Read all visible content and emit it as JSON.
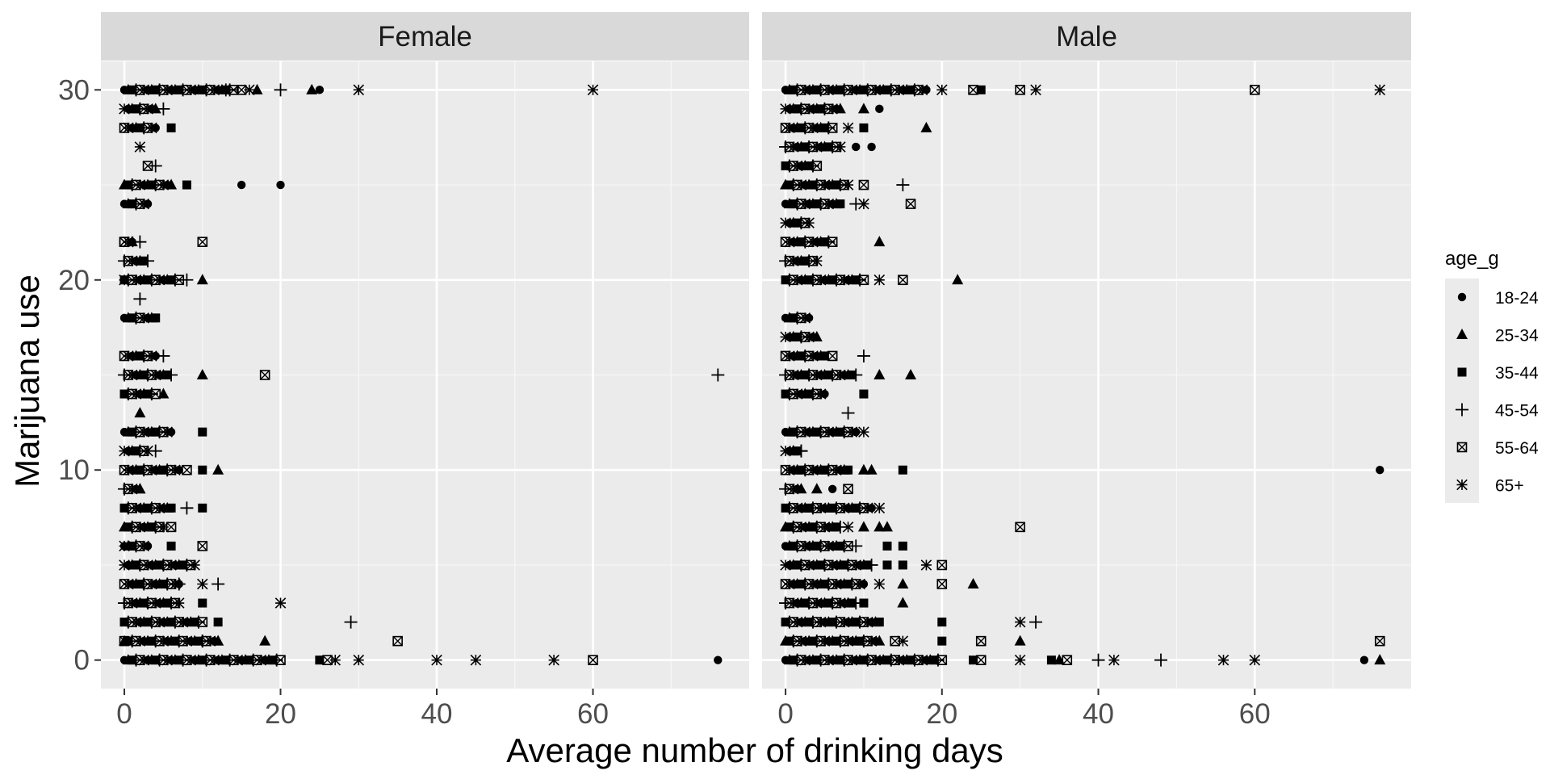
{
  "chart_data": {
    "type": "scatter",
    "xlabel": "Average number of drinking days",
    "ylabel": "Marijuana use",
    "xlim": [
      -3,
      80
    ],
    "ylim": [
      -1.5,
      31.5
    ],
    "x_ticks": [
      0,
      20,
      40,
      60
    ],
    "y_ticks": [
      0,
      10,
      20,
      30
    ],
    "grid": true,
    "legend": {
      "title": "age_g",
      "position": "right",
      "entries": [
        {
          "label": "18-24",
          "shape": "circle"
        },
        {
          "label": "25-34",
          "shape": "triangle"
        },
        {
          "label": "35-44",
          "shape": "square"
        },
        {
          "label": "45-54",
          "shape": "plus"
        },
        {
          "label": "55-64",
          "shape": "boxx"
        },
        {
          "label": "65+",
          "shape": "asterisk"
        }
      ]
    },
    "panels": [
      {
        "label": "Female",
        "clusters": [
          {
            "y": 30,
            "x_to": 14
          },
          {
            "y": 29,
            "x_to": 4
          },
          {
            "y": 28,
            "x_to": 4
          },
          {
            "y": 25,
            "x_to": 6
          },
          {
            "y": 24,
            "x_to": 3
          },
          {
            "y": 22,
            "x_to": 1
          },
          {
            "y": 21,
            "x_to": 3
          },
          {
            "y": 20,
            "x_to": 7
          },
          {
            "y": 18,
            "x_to": 4
          },
          {
            "y": 16,
            "x_to": 4
          },
          {
            "y": 15,
            "x_to": 6
          },
          {
            "y": 14,
            "x_to": 4
          },
          {
            "y": 12,
            "x_to": 6
          },
          {
            "y": 11,
            "x_to": 3
          },
          {
            "y": 10,
            "x_to": 7
          },
          {
            "y": 9,
            "x_to": 2
          },
          {
            "y": 8,
            "x_to": 6
          },
          {
            "y": 7,
            "x_to": 5
          },
          {
            "y": 6,
            "x_to": 3
          },
          {
            "y": 5,
            "x_to": 9
          },
          {
            "y": 4,
            "x_to": 7
          },
          {
            "y": 3,
            "x_to": 7
          },
          {
            "y": 2,
            "x_to": 10
          },
          {
            "y": 1,
            "x_to": 12
          },
          {
            "y": 0,
            "x_to": 20
          }
        ],
        "points": [
          {
            "x": 13,
            "y": 30,
            "g": "45-54"
          },
          {
            "x": 15,
            "y": 30,
            "g": "55-64"
          },
          {
            "x": 16,
            "y": 30,
            "g": "65+"
          },
          {
            "x": 17,
            "y": 30,
            "g": "25-34"
          },
          {
            "x": 20,
            "y": 30,
            "g": "45-54"
          },
          {
            "x": 24,
            "y": 30,
            "g": "25-34"
          },
          {
            "x": 25,
            "y": 30,
            "g": "18-24"
          },
          {
            "x": 30,
            "y": 30,
            "g": "65+"
          },
          {
            "x": 60,
            "y": 30,
            "g": "65+"
          },
          {
            "x": 5,
            "y": 29,
            "g": "45-54"
          },
          {
            "x": 2,
            "y": 27,
            "g": "65+"
          },
          {
            "x": 6,
            "y": 28,
            "g": "35-44"
          },
          {
            "x": 3,
            "y": 26,
            "g": "55-64"
          },
          {
            "x": 4,
            "y": 26,
            "g": "45-54"
          },
          {
            "x": 8,
            "y": 25,
            "g": "35-44"
          },
          {
            "x": 15,
            "y": 25,
            "g": "18-24"
          },
          {
            "x": 20,
            "y": 25,
            "g": "18-24"
          },
          {
            "x": 0,
            "y": 22,
            "g": "55-64"
          },
          {
            "x": 1,
            "y": 22,
            "g": "25-34"
          },
          {
            "x": 2,
            "y": 22,
            "g": "45-54"
          },
          {
            "x": 10,
            "y": 22,
            "g": "55-64"
          },
          {
            "x": 0,
            "y": 20,
            "g": "65+"
          },
          {
            "x": 10,
            "y": 20,
            "g": "25-34"
          },
          {
            "x": 8,
            "y": 20,
            "g": "45-54"
          },
          {
            "x": 2,
            "y": 19,
            "g": "45-54"
          },
          {
            "x": 5,
            "y": 16,
            "g": "45-54"
          },
          {
            "x": 10,
            "y": 15,
            "g": "25-34"
          },
          {
            "x": 18,
            "y": 15,
            "g": "55-64"
          },
          {
            "x": 76,
            "y": 15,
            "g": "45-54"
          },
          {
            "x": 5,
            "y": 14,
            "g": "25-34"
          },
          {
            "x": 2,
            "y": 13,
            "g": "25-34"
          },
          {
            "x": 10,
            "y": 12,
            "g": "35-44"
          },
          {
            "x": 4,
            "y": 11,
            "g": "45-54"
          },
          {
            "x": 8,
            "y": 10,
            "g": "55-64"
          },
          {
            "x": 10,
            "y": 10,
            "g": "35-44"
          },
          {
            "x": 12,
            "y": 10,
            "g": "25-34"
          },
          {
            "x": 2,
            "y": 9,
            "g": "25-34"
          },
          {
            "x": 8,
            "y": 8,
            "g": "45-54"
          },
          {
            "x": 10,
            "y": 8,
            "g": "35-44"
          },
          {
            "x": 6,
            "y": 7,
            "g": "55-64"
          },
          {
            "x": 0,
            "y": 6,
            "g": "65+"
          },
          {
            "x": 6,
            "y": 6,
            "g": "35-44"
          },
          {
            "x": 10,
            "y": 6,
            "g": "55-64"
          },
          {
            "x": 7,
            "y": 4,
            "g": "45-54"
          },
          {
            "x": 10,
            "y": 4,
            "g": "65+"
          },
          {
            "x": 12,
            "y": 4,
            "g": "45-54"
          },
          {
            "x": 10,
            "y": 3,
            "g": "35-44"
          },
          {
            "x": 20,
            "y": 3,
            "g": "65+"
          },
          {
            "x": 12,
            "y": 2,
            "g": "35-44"
          },
          {
            "x": 29,
            "y": 2,
            "g": "45-54"
          },
          {
            "x": 0,
            "y": 1,
            "g": "55-64"
          },
          {
            "x": 10,
            "y": 1,
            "g": "45-54"
          },
          {
            "x": 12,
            "y": 1,
            "g": "25-34"
          },
          {
            "x": 18,
            "y": 1,
            "g": "25-34"
          },
          {
            "x": 35,
            "y": 1,
            "g": "55-64"
          },
          {
            "x": 25,
            "y": 0,
            "g": "35-44"
          },
          {
            "x": 26,
            "y": 0,
            "g": "55-64"
          },
          {
            "x": 27,
            "y": 0,
            "g": "65+"
          },
          {
            "x": 30,
            "y": 0,
            "g": "65+"
          },
          {
            "x": 40,
            "y": 0,
            "g": "65+"
          },
          {
            "x": 45,
            "y": 0,
            "g": "65+"
          },
          {
            "x": 55,
            "y": 0,
            "g": "65+"
          },
          {
            "x": 60,
            "y": 0,
            "g": "55-64"
          },
          {
            "x": 76,
            "y": 0,
            "g": "18-24"
          }
        ]
      },
      {
        "label": "Male",
        "clusters": [
          {
            "y": 30,
            "x_to": 18
          },
          {
            "y": 29,
            "x_to": 7
          },
          {
            "y": 28,
            "x_to": 6
          },
          {
            "y": 27,
            "x_to": 7
          },
          {
            "y": 26,
            "x_to": 4
          },
          {
            "y": 25,
            "x_to": 8
          },
          {
            "y": 24,
            "x_to": 7
          },
          {
            "y": 23,
            "x_to": 3
          },
          {
            "y": 22,
            "x_to": 6
          },
          {
            "y": 21,
            "x_to": 4
          },
          {
            "y": 20,
            "x_to": 10
          },
          {
            "y": 18,
            "x_to": 3
          },
          {
            "y": 17,
            "x_to": 4
          },
          {
            "y": 16,
            "x_to": 5
          },
          {
            "y": 15,
            "x_to": 9
          },
          {
            "y": 14,
            "x_to": 5
          },
          {
            "y": 12,
            "x_to": 9
          },
          {
            "y": 11,
            "x_to": 2
          },
          {
            "y": 10,
            "x_to": 8
          },
          {
            "y": 9,
            "x_to": 2
          },
          {
            "y": 8,
            "x_to": 11
          },
          {
            "y": 7,
            "x_to": 7
          },
          {
            "y": 6,
            "x_to": 8
          },
          {
            "y": 5,
            "x_to": 11
          },
          {
            "y": 4,
            "x_to": 10
          },
          {
            "y": 3,
            "x_to": 9
          },
          {
            "y": 2,
            "x_to": 12
          },
          {
            "y": 1,
            "x_to": 12
          },
          {
            "y": 0,
            "x_to": 20
          }
        ],
        "points": [
          {
            "x": 20,
            "y": 30,
            "g": "65+"
          },
          {
            "x": 25,
            "y": 30,
            "g": "35-44"
          },
          {
            "x": 24,
            "y": 30,
            "g": "55-64"
          },
          {
            "x": 30,
            "y": 30,
            "g": "55-64"
          },
          {
            "x": 32,
            "y": 30,
            "g": "65+"
          },
          {
            "x": 60,
            "y": 30,
            "g": "55-64"
          },
          {
            "x": 76,
            "y": 30,
            "g": "65+"
          },
          {
            "x": 10,
            "y": 29,
            "g": "25-34"
          },
          {
            "x": 12,
            "y": 29,
            "g": "18-24"
          },
          {
            "x": 8,
            "y": 28,
            "g": "65+"
          },
          {
            "x": 10,
            "y": 28,
            "g": "35-44"
          },
          {
            "x": 18,
            "y": 28,
            "g": "25-34"
          },
          {
            "x": 9,
            "y": 27,
            "g": "18-24"
          },
          {
            "x": 11,
            "y": 27,
            "g": "18-24"
          },
          {
            "x": 10,
            "y": 25,
            "g": "55-64"
          },
          {
            "x": 15,
            "y": 25,
            "g": "45-54"
          },
          {
            "x": 9,
            "y": 24,
            "g": "45-54"
          },
          {
            "x": 10,
            "y": 24,
            "g": "65+"
          },
          {
            "x": 16,
            "y": 24,
            "g": "55-64"
          },
          {
            "x": 12,
            "y": 22,
            "g": "25-34"
          },
          {
            "x": 12,
            "y": 20,
            "g": "65+"
          },
          {
            "x": 15,
            "y": 20,
            "g": "55-64"
          },
          {
            "x": 22,
            "y": 20,
            "g": "25-34"
          },
          {
            "x": 6,
            "y": 16,
            "g": "55-64"
          },
          {
            "x": 10,
            "y": 16,
            "g": "45-54"
          },
          {
            "x": 12,
            "y": 15,
            "g": "25-34"
          },
          {
            "x": 16,
            "y": 15,
            "g": "25-34"
          },
          {
            "x": 8,
            "y": 13,
            "g": "45-54"
          },
          {
            "x": 10,
            "y": 14,
            "g": "35-44"
          },
          {
            "x": 10,
            "y": 12,
            "g": "65+"
          },
          {
            "x": 1,
            "y": 11,
            "g": "25-34"
          },
          {
            "x": 2,
            "y": 11,
            "g": "45-54"
          },
          {
            "x": 10,
            "y": 10,
            "g": "25-34"
          },
          {
            "x": 11,
            "y": 10,
            "g": "25-34"
          },
          {
            "x": 15,
            "y": 10,
            "g": "35-44"
          },
          {
            "x": 76,
            "y": 10,
            "g": "18-24"
          },
          {
            "x": 4,
            "y": 9,
            "g": "25-34"
          },
          {
            "x": 6,
            "y": 9,
            "g": "18-24"
          },
          {
            "x": 8,
            "y": 9,
            "g": "55-64"
          },
          {
            "x": 12,
            "y": 8,
            "g": "65+"
          },
          {
            "x": 8,
            "y": 7,
            "g": "65+"
          },
          {
            "x": 10,
            "y": 7,
            "g": "25-34"
          },
          {
            "x": 12,
            "y": 7,
            "g": "25-34"
          },
          {
            "x": 13,
            "y": 7,
            "g": "25-34"
          },
          {
            "x": 30,
            "y": 7,
            "g": "55-64"
          },
          {
            "x": 9,
            "y": 6,
            "g": "45-54"
          },
          {
            "x": 13,
            "y": 6,
            "g": "35-44"
          },
          {
            "x": 15,
            "y": 6,
            "g": "35-44"
          },
          {
            "x": 13,
            "y": 5,
            "g": "35-44"
          },
          {
            "x": 15,
            "y": 5,
            "g": "35-44"
          },
          {
            "x": 18,
            "y": 5,
            "g": "65+"
          },
          {
            "x": 20,
            "y": 5,
            "g": "55-64"
          },
          {
            "x": 12,
            "y": 4,
            "g": "65+"
          },
          {
            "x": 15,
            "y": 4,
            "g": "25-34"
          },
          {
            "x": 20,
            "y": 4,
            "g": "55-64"
          },
          {
            "x": 24,
            "y": 4,
            "g": "25-34"
          },
          {
            "x": 10,
            "y": 3,
            "g": "35-44"
          },
          {
            "x": 15,
            "y": 3,
            "g": "25-34"
          },
          {
            "x": 20,
            "y": 2,
            "g": "35-44"
          },
          {
            "x": 30,
            "y": 2,
            "g": "65+"
          },
          {
            "x": 32,
            "y": 2,
            "g": "45-54"
          },
          {
            "x": 14,
            "y": 1,
            "g": "55-64"
          },
          {
            "x": 15,
            "y": 1,
            "g": "65+"
          },
          {
            "x": 20,
            "y": 1,
            "g": "35-44"
          },
          {
            "x": 25,
            "y": 1,
            "g": "55-64"
          },
          {
            "x": 30,
            "y": 1,
            "g": "25-34"
          },
          {
            "x": 76,
            "y": 1,
            "g": "55-64"
          },
          {
            "x": 24,
            "y": 0,
            "g": "35-44"
          },
          {
            "x": 25,
            "y": 0,
            "g": "55-64"
          },
          {
            "x": 30,
            "y": 0,
            "g": "65+"
          },
          {
            "x": 34,
            "y": 0,
            "g": "35-44"
          },
          {
            "x": 35,
            "y": 0,
            "g": "25-34"
          },
          {
            "x": 36,
            "y": 0,
            "g": "55-64"
          },
          {
            "x": 40,
            "y": 0,
            "g": "45-54"
          },
          {
            "x": 42,
            "y": 0,
            "g": "65+"
          },
          {
            "x": 48,
            "y": 0,
            "g": "45-54"
          },
          {
            "x": 56,
            "y": 0,
            "g": "65+"
          },
          {
            "x": 60,
            "y": 0,
            "g": "65+"
          },
          {
            "x": 74,
            "y": 0,
            "g": "18-24"
          },
          {
            "x": 76,
            "y": 0,
            "g": "25-34"
          }
        ]
      }
    ]
  }
}
